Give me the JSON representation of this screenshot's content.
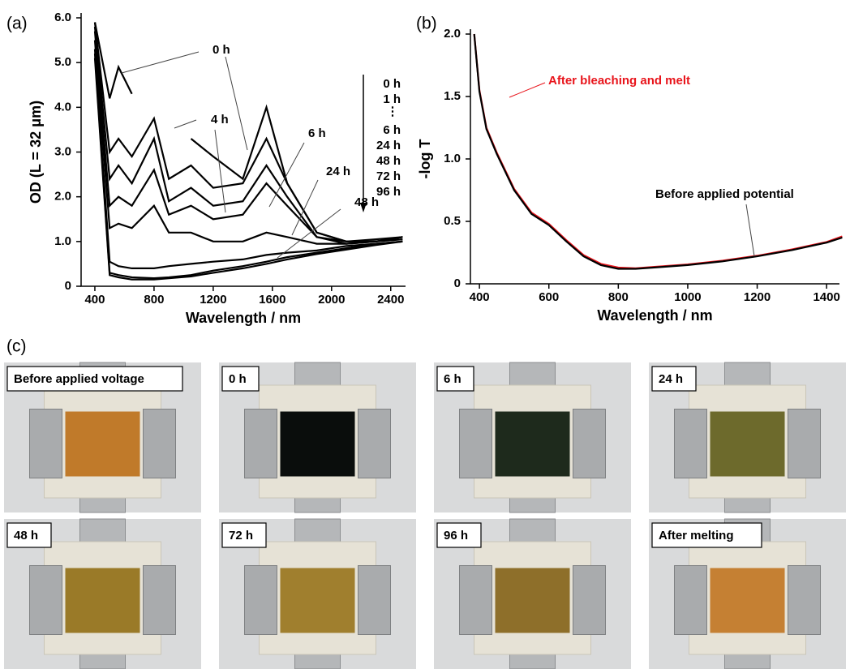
{
  "chart_data": [
    {
      "type": "line",
      "panel": "(a)",
      "x_label": "Wavelength / nm",
      "y_label": "OD (L = 32 μm)",
      "xlim": [
        307,
        2500
      ],
      "xticks": [
        400,
        800,
        1200,
        1600,
        2000,
        2400
      ],
      "ylim": [
        0,
        6
      ],
      "yticks": [
        0,
        {
          "value": 1,
          "label": "1.0"
        },
        {
          "value": 2,
          "label": "2.0"
        },
        {
          "value": 3,
          "label": "3.0"
        },
        {
          "value": 4,
          "label": "4.0"
        },
        {
          "value": 5,
          "label": "5.0"
        },
        {
          "value": 6,
          "label": "6.0"
        }
      ],
      "legend_ellipsis": "⋮",
      "x": [
        400,
        500,
        560,
        650,
        800,
        900,
        1050,
        1200,
        1400,
        1560,
        1700,
        1900,
        2100,
        2300,
        2480
      ],
      "series": [
        {
          "name": "0 h",
          "color": "#000000",
          "in_legend": true,
          "callout": true,
          "values": [
            5.9,
            4.2,
            4.9,
            4.3,
            null,
            null,
            3.3,
            2.9,
            2.4,
            4.0,
            2.3,
            1.2,
            1.0,
            1.05,
            1.1
          ]
        },
        {
          "name": "1 h",
          "color": "#000000",
          "in_legend": true,
          "callout": false,
          "values": [
            5.9,
            3.0,
            3.3,
            2.9,
            3.75,
            2.4,
            2.7,
            2.2,
            2.3,
            3.3,
            2.3,
            1.2,
            1.0,
            1.0,
            1.1
          ]
        },
        {
          "name": "4 h",
          "color": "#000000",
          "in_legend": false,
          "callout": true,
          "values": [
            5.8,
            2.4,
            2.7,
            2.3,
            3.3,
            1.9,
            2.2,
            1.8,
            1.9,
            2.7,
            2.0,
            1.1,
            1.0,
            1.0,
            1.1
          ]
        },
        {
          "name": "6 h",
          "color": "#000000",
          "in_legend": true,
          "callout": true,
          "values": [
            5.7,
            1.8,
            2.0,
            1.8,
            2.6,
            1.6,
            1.8,
            1.5,
            1.6,
            2.3,
            1.8,
            1.1,
            0.95,
            1.0,
            1.1
          ]
        },
        {
          "name": "24 h",
          "color": "#000000",
          "in_legend": true,
          "callout": true,
          "values": [
            5.5,
            1.3,
            1.4,
            1.3,
            1.8,
            1.2,
            1.2,
            1.0,
            1.0,
            1.2,
            1.1,
            0.95,
            0.95,
            1.0,
            1.05
          ]
        },
        {
          "name": "48 h",
          "color": "#000000",
          "in_legend": true,
          "callout": true,
          "values": [
            5.3,
            0.55,
            0.45,
            0.4,
            0.4,
            0.45,
            0.5,
            0.55,
            0.6,
            0.7,
            0.75,
            0.8,
            0.9,
            0.95,
            1.0
          ]
        },
        {
          "name": "72 h",
          "color": "#000000",
          "in_legend": true,
          "callout": false,
          "values": [
            5.2,
            0.3,
            0.25,
            0.2,
            0.18,
            0.2,
            0.25,
            0.35,
            0.45,
            0.55,
            0.65,
            0.75,
            0.85,
            0.95,
            1.0
          ]
        },
        {
          "name": "96 h",
          "color": "#000000",
          "in_legend": true,
          "callout": false,
          "values": [
            5.1,
            0.25,
            0.2,
            0.15,
            0.15,
            0.18,
            0.22,
            0.3,
            0.4,
            0.5,
            0.6,
            0.72,
            0.82,
            0.92,
            1.0
          ]
        }
      ]
    },
    {
      "type": "line",
      "panel": "(b)",
      "x_label": "Wavelength / nm",
      "y_label": "-log T",
      "xlim": [
        374,
        1437
      ],
      "xticks": [
        400,
        600,
        800,
        1000,
        1200,
        1400
      ],
      "ylim": [
        0,
        2
      ],
      "yticks": [
        0,
        0.5,
        {
          "value": 1,
          "label": "1.0"
        },
        1.5,
        {
          "value": 2,
          "label": "2.0"
        }
      ],
      "x": [
        385,
        400,
        420,
        450,
        500,
        550,
        600,
        650,
        700,
        750,
        800,
        850,
        900,
        1000,
        1100,
        1200,
        1300,
        1400,
        1445
      ],
      "series": [
        {
          "name": "After bleaching and melt",
          "color": "#e8141b",
          "callout": true,
          "values": [
            2.0,
            1.55,
            1.25,
            1.05,
            0.76,
            0.57,
            0.48,
            0.35,
            0.23,
            0.16,
            0.13,
            0.125,
            0.135,
            0.155,
            0.185,
            0.225,
            0.275,
            0.335,
            0.38
          ]
        },
        {
          "name": "Before applied potential",
          "color": "#000000",
          "callout": true,
          "values": [
            2.0,
            1.54,
            1.24,
            1.04,
            0.75,
            0.56,
            0.47,
            0.34,
            0.22,
            0.15,
            0.12,
            0.12,
            0.13,
            0.15,
            0.18,
            0.22,
            0.27,
            0.33,
            0.37
          ]
        }
      ]
    }
  ],
  "photos": {
    "panel": "(c)",
    "items": [
      {
        "label": "Before applied voltage",
        "color": "#c07a2a"
      },
      {
        "label": "0 h",
        "color": "#0a0d0c"
      },
      {
        "label": "6 h",
        "color": "#1e2a1c"
      },
      {
        "label": "24 h",
        "color": "#6d6a2c"
      },
      {
        "label": "48 h",
        "color": "#9a7a28"
      },
      {
        "label": "72 h",
        "color": "#a07f2e"
      },
      {
        "label": "96 h",
        "color": "#8e6f2a"
      },
      {
        "label": "After melting",
        "color": "#c58033"
      }
    ]
  }
}
